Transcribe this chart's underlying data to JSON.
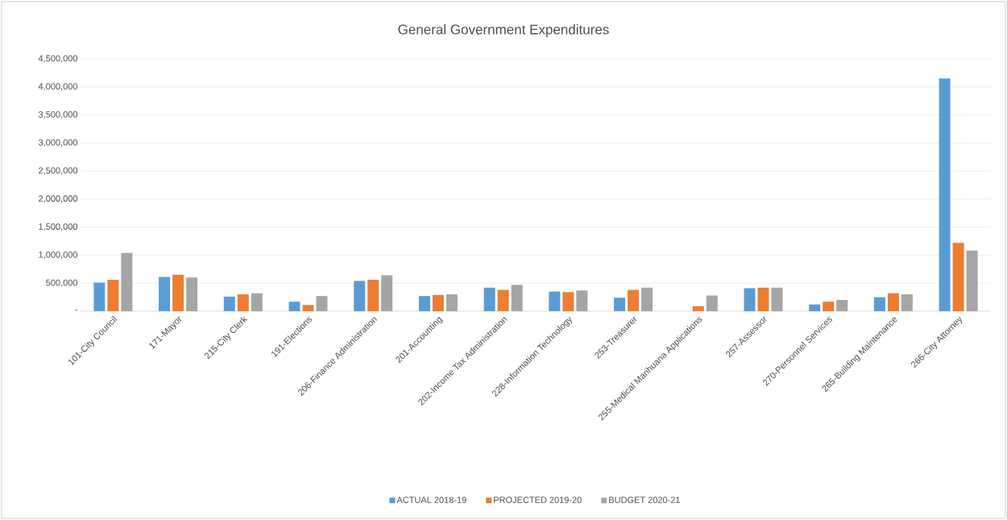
{
  "chart_data": {
    "type": "bar",
    "title": "General Government Expenditures",
    "categories": [
      "101-City Council",
      "171-Mayor",
      "215-City Clerk",
      "191-Elections",
      "206-Finance Administration",
      "201-Accounting",
      "202-Income Tax Administration",
      "228-Information Technology",
      "253-Treasurer",
      "255-Medical Marihuana Applications",
      "257-Assessor",
      "270-Personnel Services",
      "265-Building Maintenance",
      "266-City Attorney"
    ],
    "series": [
      {
        "name": "ACTUAL   2018-19",
        "color": "#5b9bd5",
        "values": [
          510000,
          610000,
          260000,
          170000,
          540000,
          270000,
          420000,
          350000,
          240000,
          0,
          410000,
          120000,
          250000,
          4150000
        ]
      },
      {
        "name": "PROJECTED   2019-20",
        "color": "#ed7d31",
        "values": [
          560000,
          650000,
          300000,
          110000,
          560000,
          290000,
          380000,
          340000,
          380000,
          90000,
          420000,
          170000,
          320000,
          1220000
        ]
      },
      {
        "name": "BUDGET   2020-21",
        "color": "#a5a5a5",
        "values": [
          1040000,
          600000,
          320000,
          270000,
          640000,
          300000,
          470000,
          370000,
          420000,
          280000,
          420000,
          200000,
          300000,
          1080000
        ]
      }
    ],
    "ylim": [
      0,
      4500000
    ],
    "yticks": [
      {
        "value": 0,
        "label": "-"
      },
      {
        "value": 500000,
        "label": "500,000"
      },
      {
        "value": 1000000,
        "label": "1,000,000"
      },
      {
        "value": 1500000,
        "label": "1,500,000"
      },
      {
        "value": 2000000,
        "label": "2,000,000"
      },
      {
        "value": 2500000,
        "label": "2,500,000"
      },
      {
        "value": 3000000,
        "label": "3,000,000"
      },
      {
        "value": 3500000,
        "label": "3,500,000"
      },
      {
        "value": 4000000,
        "label": "4,000,000"
      },
      {
        "value": 4500000,
        "label": "4,500,000"
      }
    ],
    "grid": "y",
    "legend": "bottom"
  }
}
